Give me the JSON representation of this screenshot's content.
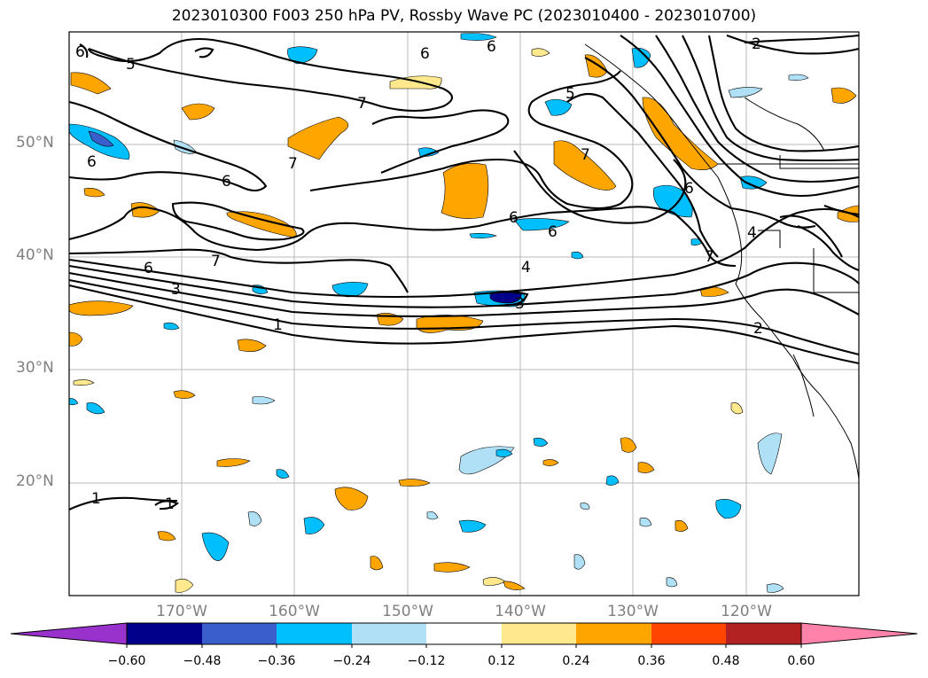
{
  "title": "2023010300 F003 250 hPa PV, Rossby Wave PC (2023010400 - 2023010700)",
  "map": {
    "lat_labels": [
      "50°N",
      "40°N",
      "30°N",
      "20°N"
    ],
    "lon_labels": [
      "170°W",
      "160°W",
      "150°W",
      "140°W",
      "130°W",
      "120°W"
    ],
    "contour_labels": [
      "6",
      "5",
      "6",
      "6",
      "2",
      "7",
      "7",
      "6",
      "6",
      "5",
      "7",
      "6",
      "6",
      "7",
      "6",
      "4",
      "7",
      "4",
      "6",
      "3",
      "3",
      "1",
      "2",
      "1",
      "1"
    ]
  },
  "colorbar": {
    "ticks": [
      "−0.60",
      "−0.48",
      "−0.36",
      "−0.24",
      "−0.12",
      "0.12",
      "0.24",
      "0.36",
      "0.48",
      "0.60"
    ],
    "colors": [
      "#9932cc",
      "#00008b",
      "#3a5fcd",
      "#00bfff",
      "#b0e0f6",
      "#ffffff",
      "#ffe98c",
      "#ffa500",
      "#ff4500",
      "#b22222",
      "#ff82ab"
    ]
  }
}
